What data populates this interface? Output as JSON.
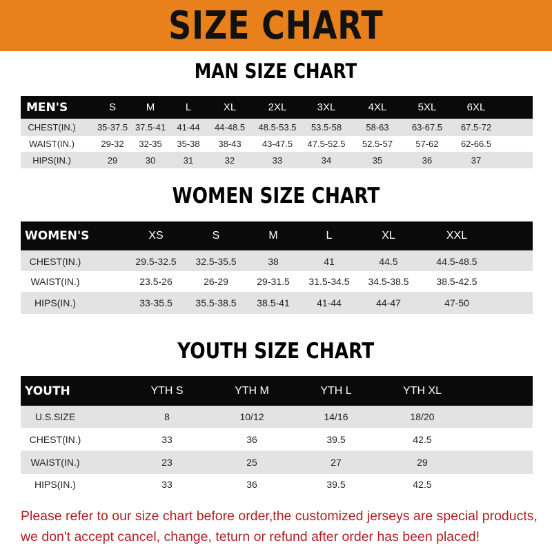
{
  "banner": {
    "title": "SIZE CHART"
  },
  "men": {
    "title": "MAN SIZE CHART",
    "header": [
      "MEN'S",
      "S",
      "M",
      "L",
      "XL",
      "2XL",
      "3XL",
      "4XL",
      "5XL",
      "6XL"
    ],
    "rows": [
      [
        "CHEST(IN.)",
        "35-37.5",
        "37.5-41",
        "41-44",
        "44-48.5",
        "48.5-53.5",
        "53.5-58",
        "58-63",
        "63-67.5",
        "67.5-72"
      ],
      [
        "WAIST(IN.)",
        "29-32",
        "32-35",
        "35-38",
        "38-43",
        "43-47.5",
        "47.5-52.5",
        "52.5-57",
        "57-62",
        "62-66.5"
      ],
      [
        "HIPS(IN.)",
        "29",
        "30",
        "31",
        "32",
        "33",
        "34",
        "35",
        "36",
        "37"
      ]
    ]
  },
  "women": {
    "title": "WOMEN SIZE CHART",
    "header": [
      "WOMEN'S",
      "XS",
      "S",
      "M",
      "L",
      "XL",
      "XXL"
    ],
    "rows": [
      [
        "CHEST(IN.)",
        "29.5-32.5",
        "32.5-35.5",
        "38",
        "41",
        "44.5",
        "44.5-48.5"
      ],
      [
        "WAIST(IN.)",
        "23.5-26",
        "26-29",
        "29-31.5",
        "31.5-34.5",
        "34.5-38.5",
        "38.5-42.5"
      ],
      [
        "HIPS(IN.)",
        "33-35.5",
        "35.5-38.5",
        "38.5-41",
        "41-44",
        "44-47",
        "47-50"
      ]
    ]
  },
  "youth": {
    "title": "YOUTH SIZE CHART",
    "header": [
      "YOUTH",
      "YTH S",
      "YTH M",
      "YTH L",
      "YTH XL"
    ],
    "rows": [
      [
        "U.S.SIZE",
        "8",
        "10/12",
        "14/16",
        "18/20"
      ],
      [
        "CHEST(IN.)",
        "33",
        "36",
        "39.5",
        "42.5"
      ],
      [
        "WAIST(IN.)",
        "23",
        "25",
        "27",
        "29"
      ],
      [
        "HIPS(IN.)",
        "33",
        "36",
        "39.5",
        "42.5"
      ]
    ]
  },
  "footer": {
    "line1": "Please refer to our size chart before order,the customized jerseys are special products,",
    "line2": "we don't accept cancel, change, teturn or refund after order has been placed!"
  },
  "colors": {
    "banner": "#e8811c",
    "header_row": "#0a0a0a",
    "stripe": "#e3e3e3",
    "footer_text": "#b02020"
  }
}
